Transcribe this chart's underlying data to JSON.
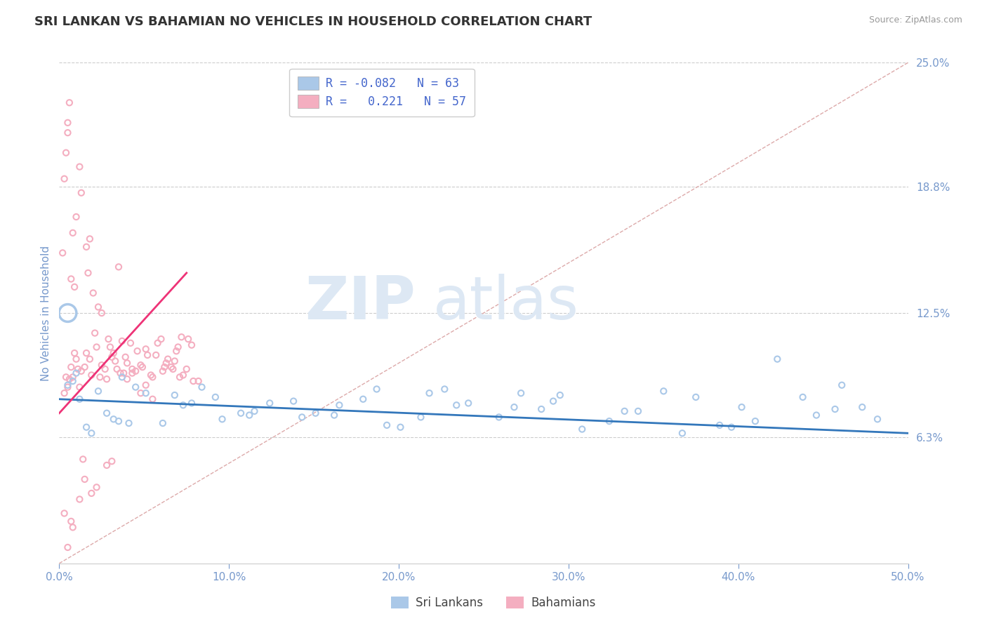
{
  "title": "SRI LANKAN VS BAHAMIAN NO VEHICLES IN HOUSEHOLD CORRELATION CHART",
  "source": "Source: ZipAtlas.com",
  "ylabel": "No Vehicles in Household",
  "xlim": [
    0.0,
    50.0
  ],
  "ylim": [
    0.0,
    25.0
  ],
  "xticks": [
    0.0,
    10.0,
    20.0,
    30.0,
    40.0,
    50.0
  ],
  "yticks": [
    0.0,
    6.3,
    12.5,
    18.8,
    25.0
  ],
  "ytick_labels": [
    "",
    "6.3%",
    "12.5%",
    "18.8%",
    "25.0%"
  ],
  "xtick_labels": [
    "0.0%",
    "10.0%",
    "20.0%",
    "30.0%",
    "40.0%",
    "50.0%"
  ],
  "grid_color": "#cccccc",
  "background_color": "#ffffff",
  "sri_lanka_color": "#aac8e8",
  "bahamas_color": "#f4aec0",
  "sri_lanka_line_color": "#3377bb",
  "bahamas_line_color": "#ee3377",
  "ref_line_color": "#ddaaaa",
  "R_sri": -0.082,
  "N_sri": 63,
  "R_bah": 0.221,
  "N_bah": 57,
  "legend_text_color": "#4466cc",
  "axis_color": "#7799cc",
  "title_color": "#333333",
  "watermark1": "ZIP",
  "watermark2": "atlas",
  "legend_sri_label": "R = -0.082   N = 63",
  "legend_bah_label": "R =   0.221   N = 57",
  "bottom_legend_sri": "Sri Lankans",
  "bottom_legend_bah": "Bahamians",
  "sri_x": [
    1.2,
    2.8,
    4.5,
    0.8,
    1.6,
    3.2,
    5.1,
    7.3,
    9.2,
    11.5,
    13.8,
    16.2,
    18.7,
    21.3,
    24.1,
    26.8,
    29.5,
    32.4,
    35.6,
    38.9,
    42.3,
    45.7,
    48.2,
    0.5,
    1.9,
    3.7,
    6.1,
    8.4,
    10.7,
    14.3,
    17.9,
    20.1,
    23.4,
    27.2,
    30.8,
    34.1,
    37.5,
    41.0,
    44.6,
    47.3,
    2.3,
    4.1,
    6.8,
    9.6,
    12.4,
    15.1,
    19.3,
    22.7,
    25.9,
    29.1,
    33.3,
    36.7,
    40.2,
    43.8,
    1.0,
    3.5,
    7.8,
    11.2,
    16.5,
    21.8,
    28.4,
    39.6,
    46.1
  ],
  "sri_y": [
    8.2,
    7.5,
    8.8,
    9.1,
    6.8,
    7.2,
    8.5,
    7.9,
    8.3,
    7.6,
    8.1,
    7.4,
    8.7,
    7.3,
    8.0,
    7.8,
    8.4,
    7.1,
    8.6,
    6.9,
    10.2,
    7.7,
    7.2,
    8.9,
    6.5,
    9.3,
    7.0,
    8.8,
    7.5,
    7.3,
    8.2,
    6.8,
    7.9,
    8.5,
    6.7,
    7.6,
    8.3,
    7.1,
    7.4,
    7.8,
    8.6,
    7.0,
    8.4,
    7.2,
    8.0,
    7.5,
    6.9,
    8.7,
    7.3,
    8.1,
    7.6,
    6.5,
    7.8,
    8.3,
    9.5,
    7.1,
    8.0,
    7.4,
    7.9,
    8.5,
    7.7,
    6.8,
    8.9
  ],
  "sri_sizes": [
    35,
    35,
    35,
    35,
    35,
    35,
    35,
    35,
    35,
    35,
    35,
    35,
    35,
    35,
    35,
    35,
    35,
    35,
    35,
    35,
    35,
    35,
    35,
    35,
    35,
    35,
    35,
    35,
    35,
    35,
    35,
    35,
    35,
    35,
    35,
    35,
    35,
    35,
    35,
    35,
    35,
    35,
    35,
    35,
    35,
    35,
    35,
    35,
    35,
    35,
    35,
    35,
    35,
    35,
    35,
    35,
    35,
    35,
    35,
    35,
    35,
    35,
    35
  ],
  "sri_large_dot_x": 0.5,
  "sri_large_dot_y": 12.5,
  "sri_large_dot_size": 320,
  "bah_x": [
    0.3,
    0.6,
    0.9,
    1.2,
    1.5,
    1.8,
    2.1,
    2.4,
    2.7,
    3.0,
    3.3,
    3.6,
    3.9,
    4.2,
    4.5,
    4.8,
    5.1,
    5.4,
    5.7,
    6.0,
    6.3,
    6.6,
    6.9,
    7.2,
    7.5,
    7.8,
    0.4,
    0.7,
    1.0,
    1.3,
    1.6,
    1.9,
    2.2,
    2.5,
    2.8,
    3.1,
    3.4,
    3.7,
    4.0,
    4.3,
    4.6,
    4.9,
    5.2,
    5.5,
    5.8,
    6.1,
    6.4,
    6.7,
    7.0,
    7.3,
    7.6,
    7.9,
    0.5,
    0.8,
    1.1,
    1.4,
    8.2
  ],
  "bah_y": [
    8.5,
    9.2,
    10.5,
    8.8,
    9.8,
    10.2,
    11.5,
    9.3,
    9.7,
    10.8,
    10.1,
    9.5,
    10.3,
    11.0,
    9.6,
    9.9,
    10.7,
    9.4,
    10.4,
    11.2,
    10.0,
    9.8,
    10.6,
    11.3,
    9.7,
    10.9,
    9.3,
    9.8,
    10.2,
    9.6,
    10.5,
    9.4,
    10.8,
    9.9,
    9.2,
    10.3,
    9.7,
    11.1,
    10.0,
    9.5,
    10.6,
    9.8,
    10.4,
    9.3,
    11.0,
    9.6,
    10.2,
    9.7,
    10.8,
    9.4,
    11.2,
    9.1,
    8.8,
    9.3,
    9.7,
    5.2,
    9.1
  ],
  "bah_sizes": [
    35,
    35,
    35,
    35,
    35,
    35,
    35,
    35,
    35,
    35,
    35,
    35,
    35,
    35,
    35,
    35,
    35,
    35,
    35,
    35,
    35,
    35,
    35,
    35,
    35,
    35,
    35,
    35,
    35,
    35,
    35,
    35,
    35,
    35,
    35,
    35,
    35,
    35,
    35,
    35,
    35,
    35,
    35,
    35,
    35,
    35,
    35,
    35,
    35,
    35,
    35,
    35,
    35,
    35,
    35,
    35,
    35
  ],
  "bah_outlier_x": [
    0.2,
    0.5,
    1.8,
    3.5,
    2.0,
    1.2,
    0.7,
    4.8,
    2.5,
    1.0,
    5.5,
    3.8,
    0.4,
    1.6,
    6.2,
    0.6,
    2.9,
    4.3,
    0.9,
    1.3,
    5.1,
    7.1,
    0.3,
    3.2,
    0.8,
    6.8,
    1.7,
    4.0,
    0.5,
    2.3
  ],
  "bah_outlier_y": [
    15.5,
    22.0,
    16.2,
    14.8,
    13.5,
    19.8,
    14.2,
    8.5,
    12.5,
    17.3,
    8.2,
    9.5,
    20.5,
    15.8,
    9.8,
    23.0,
    11.2,
    9.7,
    13.8,
    18.5,
    8.9,
    9.3,
    19.2,
    10.5,
    16.5,
    10.1,
    14.5,
    9.2,
    21.5,
    12.8
  ],
  "bah_low_y": [
    2.5,
    4.2,
    1.8,
    3.8,
    0.8,
    5.1,
    3.5,
    4.9,
    2.1,
    3.2
  ],
  "bah_low_x": [
    0.3,
    1.5,
    0.8,
    2.2,
    0.5,
    3.1,
    1.9,
    2.8,
    0.7,
    1.2
  ],
  "bah_line_x0": 0.0,
  "bah_line_y0": 7.5,
  "bah_line_x1": 7.5,
  "bah_line_y1": 14.5,
  "sri_line_x0": 0.0,
  "sri_line_y0": 8.2,
  "sri_line_x1": 50.0,
  "sri_line_y1": 6.5
}
